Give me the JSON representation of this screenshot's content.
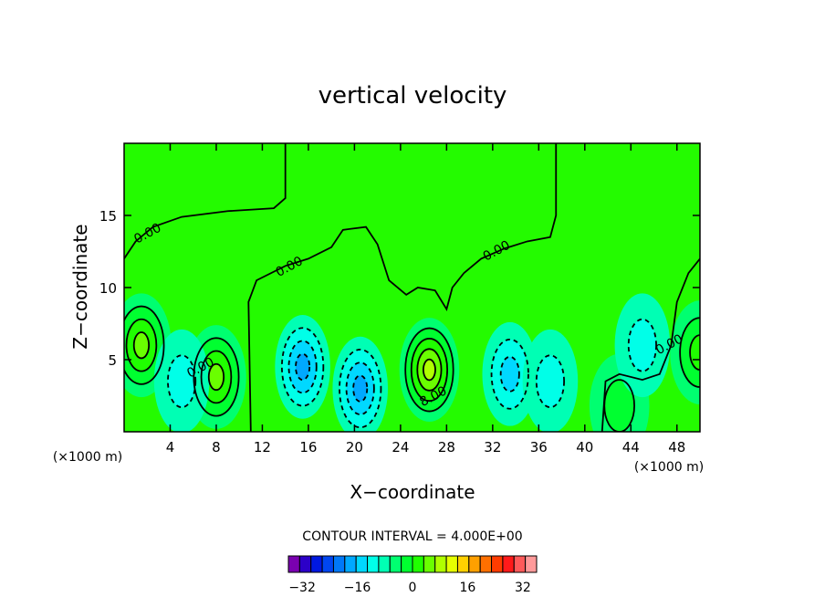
{
  "chart_data": {
    "type": "contour",
    "title": "vertical velocity",
    "xlabel": "X−coordinate",
    "ylabel": "Z−coordinate",
    "x_unit_note": "(×1000 m)",
    "y_unit_note": "(×1000 m)",
    "xlim": [
      0,
      50
    ],
    "ylim": [
      0,
      20
    ],
    "x_ticks": [
      4,
      8,
      12,
      16,
      20,
      24,
      28,
      32,
      36,
      40,
      44,
      48
    ],
    "y_ticks": [
      5,
      10,
      15
    ],
    "contour_interval_text": "CONTOUR INTERVAL = 4.000E+00",
    "colorbar": {
      "min": -36,
      "max": 36,
      "step": 4,
      "tick_values": [
        -32,
        -16,
        0,
        16,
        32
      ],
      "tick_labels": [
        "−32",
        "−16",
        "0",
        "16",
        "32"
      ],
      "colors": [
        "#7a00b0",
        "#2c00c8",
        "#0018e0",
        "#0046f0",
        "#0078f8",
        "#00a8ff",
        "#00d8ff",
        "#00ffe8",
        "#00ffb4",
        "#00ff70",
        "#00ff30",
        "#20ff00",
        "#6aff00",
        "#b0ff00",
        "#e6ff00",
        "#ffd000",
        "#ffa000",
        "#ff7000",
        "#ff3c00",
        "#ff1a1a",
        "#ff5a5a",
        "#ff9a9a"
      ]
    },
    "contour_labels": [
      {
        "text": "0.00",
        "x": 2.2,
        "z": 13.5
      },
      {
        "text": "0.00",
        "x": 14.5,
        "z": 11.2
      },
      {
        "text": "0.00",
        "x": 32.5,
        "z": 12.3
      },
      {
        "text": "0.00",
        "x": 47.5,
        "z": 5.8
      },
      {
        "text": "0.00",
        "x": 6.8,
        "z": 4.2
      },
      {
        "text": "8.00",
        "x": 27.0,
        "z": 2.2
      }
    ],
    "features": [
      {
        "kind": "updraft",
        "x": 1.5,
        "z": 6.0,
        "peak": 14
      },
      {
        "kind": "updraft",
        "x": 8.0,
        "z": 3.8,
        "peak": 14
      },
      {
        "kind": "downdraft",
        "x": 5.0,
        "z": 3.5,
        "peak": -6
      },
      {
        "kind": "downdraft",
        "x": 15.5,
        "z": 4.5,
        "peak": -14
      },
      {
        "kind": "downdraft",
        "x": 20.5,
        "z": 3.0,
        "peak": -12
      },
      {
        "kind": "updraft",
        "x": 26.5,
        "z": 4.3,
        "peak": 18
      },
      {
        "kind": "downdraft",
        "x": 33.5,
        "z": 4.0,
        "peak": -8
      },
      {
        "kind": "downdraft",
        "x": 37.0,
        "z": 3.5,
        "peak": -6
      },
      {
        "kind": "updraft",
        "x": 43.0,
        "z": 1.8,
        "peak": 6
      },
      {
        "kind": "downdraft",
        "x": 45.0,
        "z": 6.0,
        "peak": -5
      },
      {
        "kind": "updraft",
        "x": 50.0,
        "z": 5.5,
        "peak": 8
      }
    ]
  }
}
